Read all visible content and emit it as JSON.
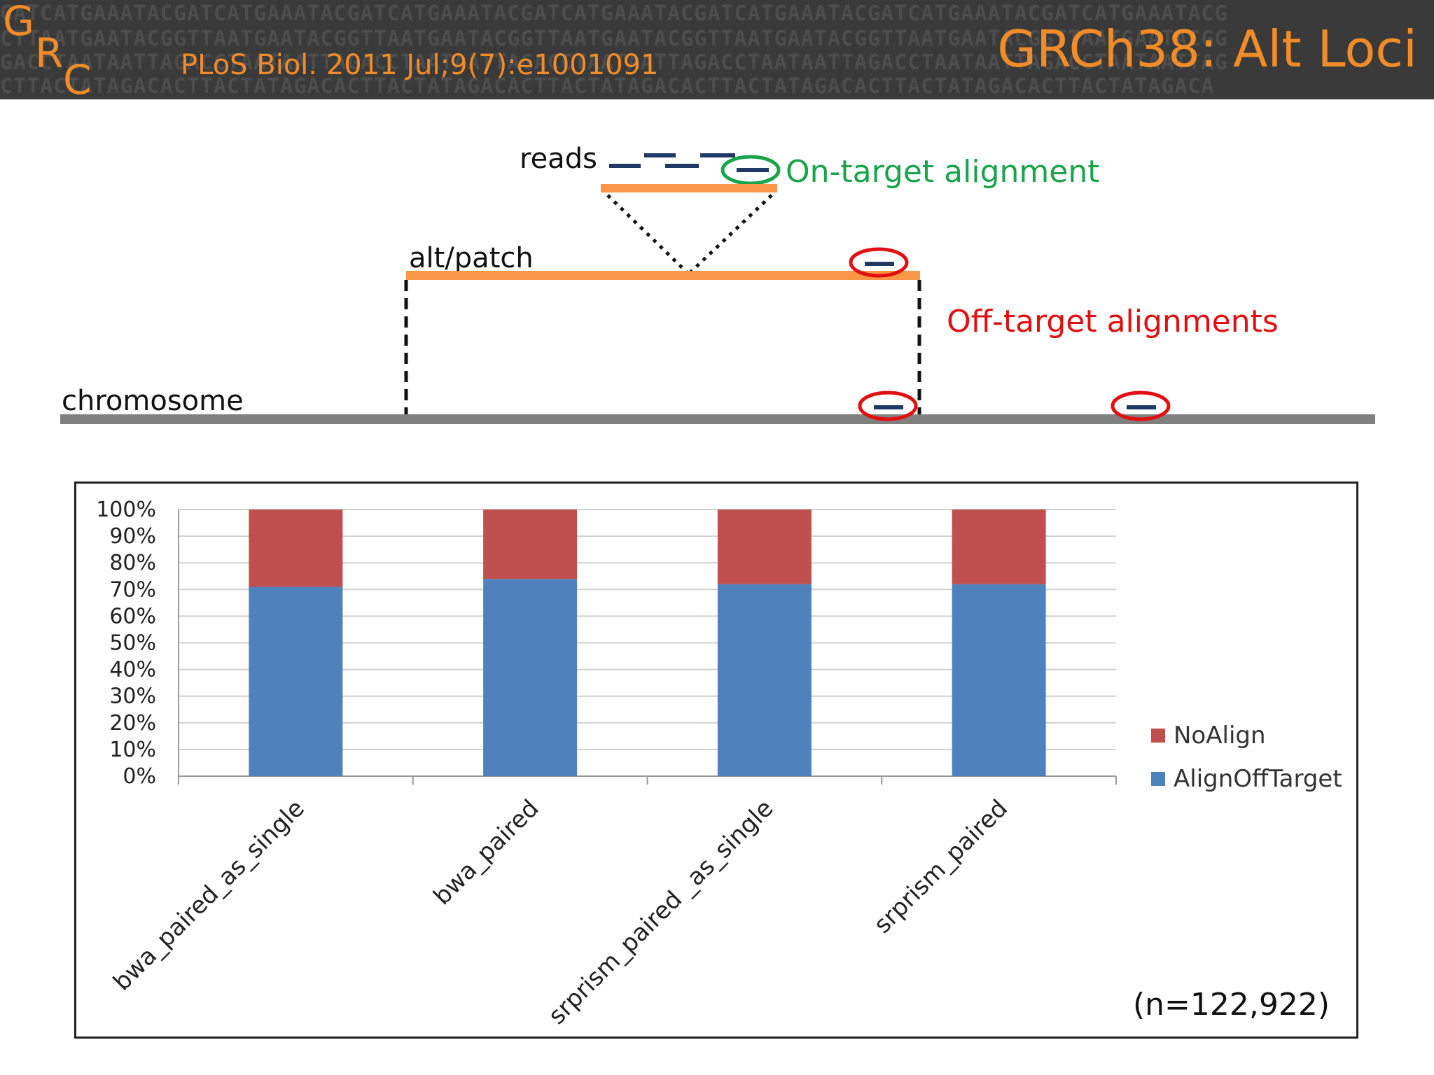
{
  "header": {
    "logo_letters": [
      "G",
      "R",
      "C"
    ],
    "citation": "PLoS Biol. 2011 Jul;9(7):e1001091",
    "title": "GRCh38: Alt Loci",
    "dna_lines": [
      "GATCATGAAATACGATCATGAAATACGATCATGAAATACGATCATGAAATACGATCATGAAATACGATCATGAAATACGATCATGAAATACG",
      "CTTAATGAATACGGTTAATGAATACGGTTAATGAATACGGTTAATGAATACGGTTAATGAATACGGTTAATGAATACGGTTAATGAATACGG",
      "GACCTAATAATTAGACCTAATAATTAGACCTAATAATTAGACCTAATAATTAGACCTAATAATTAGACCTAATAATTAGACCTAATAATTAG",
      "CTTACTATAGACACTTACTATAGACACTTACTATAGACACTTACTATAGACACTTACTATAGACACTTACTATAGACACTTACTATAGACA"
    ]
  },
  "diagram": {
    "reads_label": "reads",
    "on_target_label": "On-target alignment",
    "alt_label": "alt/patch",
    "off_target_label": "Off-target alignments",
    "chromosome_label": "chromosome",
    "colors": {
      "orange": "#f79646",
      "grey": "#808080",
      "read": "#1f3864",
      "green": "#19a34a",
      "red": "#e01010"
    }
  },
  "chart_data": {
    "type": "bar",
    "stacked": true,
    "categories": [
      "bwa_paired_as_single",
      "bwa_paired",
      "srprism_paired _as_single",
      "srprism_paired"
    ],
    "series": [
      {
        "name": "AlignOffTarget",
        "values": [
          71,
          74,
          72,
          72
        ],
        "color": "#4f81bd"
      },
      {
        "name": "NoAlign",
        "values": [
          29,
          26,
          28,
          28
        ],
        "color": "#c0504d"
      }
    ],
    "yticks": [
      "0%",
      "10%",
      "20%",
      "30%",
      "40%",
      "50%",
      "60%",
      "70%",
      "80%",
      "90%",
      "100%"
    ],
    "ylim": [
      0,
      100
    ],
    "grid": true,
    "legend_position": "right",
    "legend_order": [
      "NoAlign",
      "AlignOffTarget"
    ],
    "note": "(n=122,922)"
  }
}
